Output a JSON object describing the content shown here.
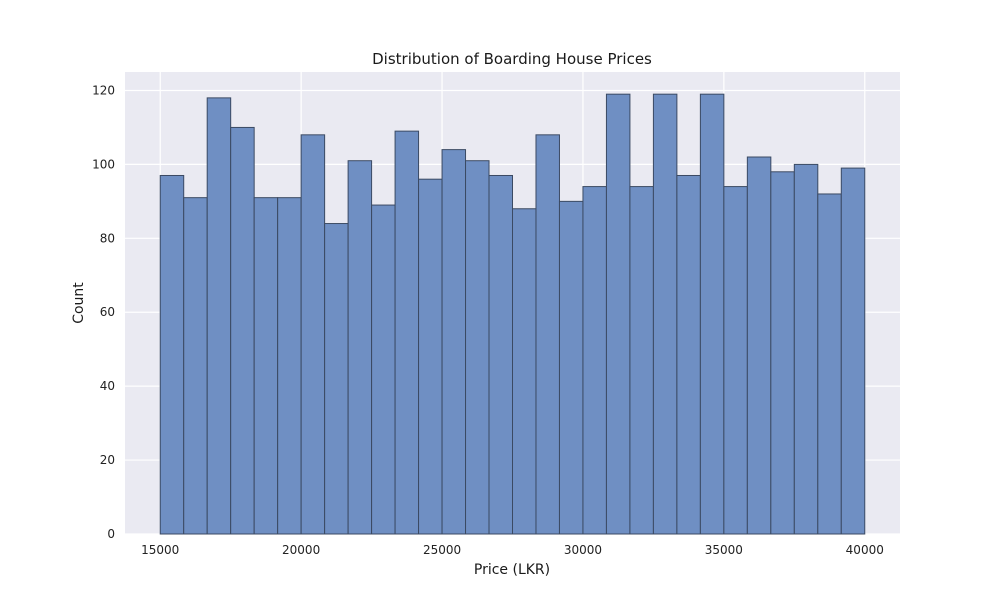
{
  "chart_data": {
    "type": "bar",
    "title": "Distribution of Boarding House Prices",
    "xlabel": "Price (LKR)",
    "ylabel": "Count",
    "xlim": [
      13750,
      41250
    ],
    "ylim": [
      0,
      125
    ],
    "xticks": [
      15000,
      20000,
      25000,
      30000,
      35000,
      40000
    ],
    "yticks": [
      0,
      20,
      40,
      60,
      80,
      100,
      120
    ],
    "grid": true,
    "bins": {
      "start": 15000,
      "end": 40000,
      "count": 30,
      "values": [
        97,
        91,
        118,
        110,
        91,
        91,
        108,
        84,
        101,
        89,
        109,
        96,
        104,
        101,
        97,
        88,
        108,
        90,
        94,
        119,
        94,
        119,
        97,
        119,
        94,
        102,
        98,
        100,
        92,
        99
      ]
    },
    "colors": {
      "bar_fill": "#6f8fc3",
      "bar_edge": "#3b4a63",
      "plot_background": "#eaeaf2",
      "grid": "#ffffff"
    }
  }
}
